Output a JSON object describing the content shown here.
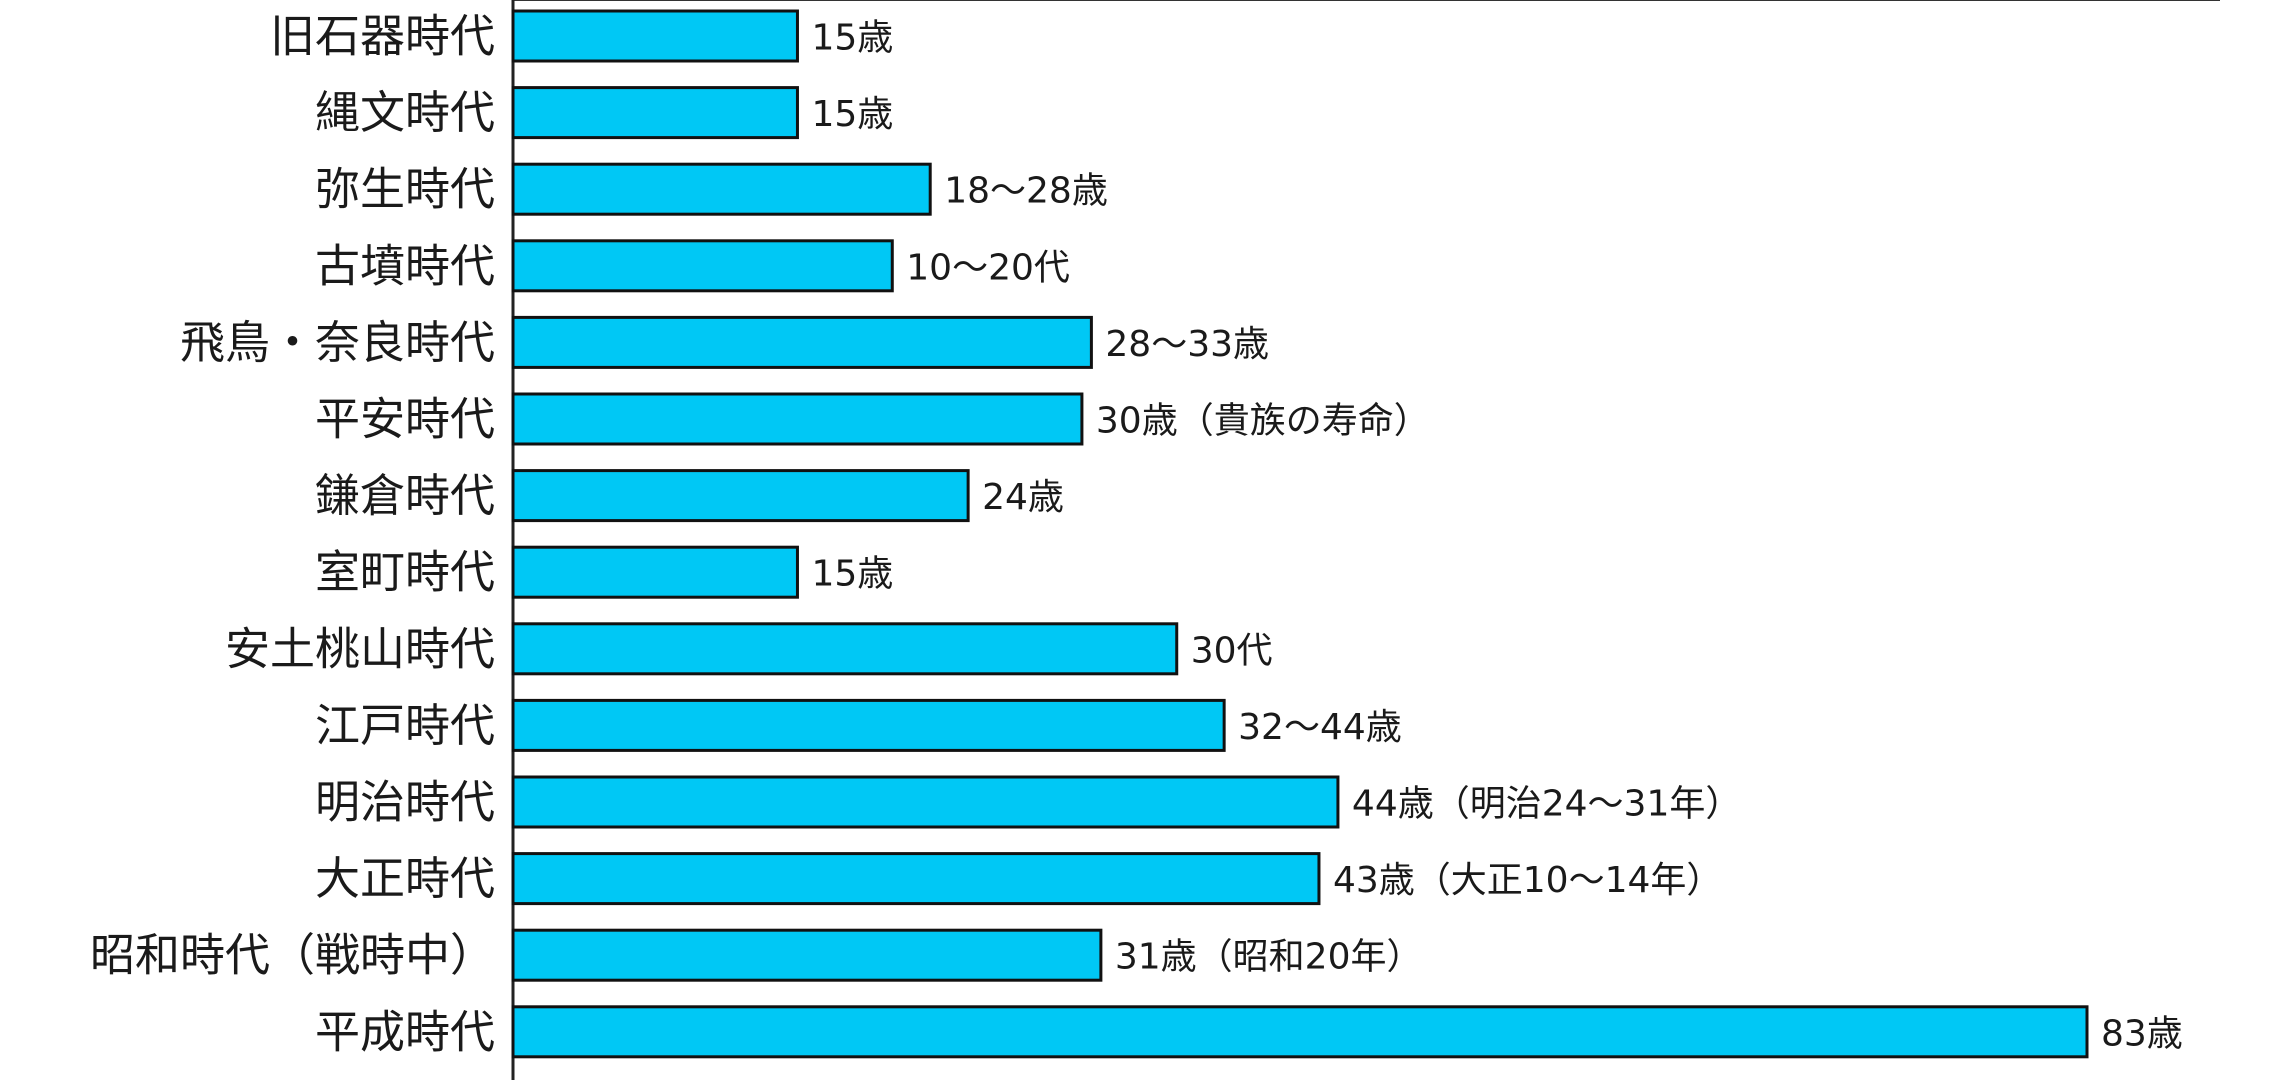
{
  "chart_data": {
    "type": "bar",
    "orientation": "horizontal",
    "categories": [
      "旧石器時代",
      "縄文時代",
      "弥生時代",
      "古墳時代",
      "飛鳥・奈良時代",
      "平安時代",
      "鎌倉時代",
      "室町時代",
      "安土桃山時代",
      "江戸時代",
      "明治時代",
      "大正時代",
      "昭和時代（戦時中）",
      "平成時代"
    ],
    "values": [
      15,
      15,
      22,
      20,
      30.5,
      30,
      24,
      15,
      35,
      37.5,
      43.5,
      42.5,
      31,
      83
    ],
    "data_labels": [
      "15歳",
      "15歳",
      "18〜28歳",
      "10〜20代",
      "28〜33歳",
      "30歳（貴族の寿命）",
      "24歳",
      "15歳",
      "30代",
      "32〜44歳",
      "44歳（明治24〜31年）",
      "43歳（大正10〜14年）",
      "31歳（昭和20年）",
      "83歳"
    ],
    "xlim": [
      0,
      83
    ],
    "grid": false,
    "colors": {
      "bar_fill": "#00C8F5",
      "bar_stroke": "#111111"
    }
  }
}
